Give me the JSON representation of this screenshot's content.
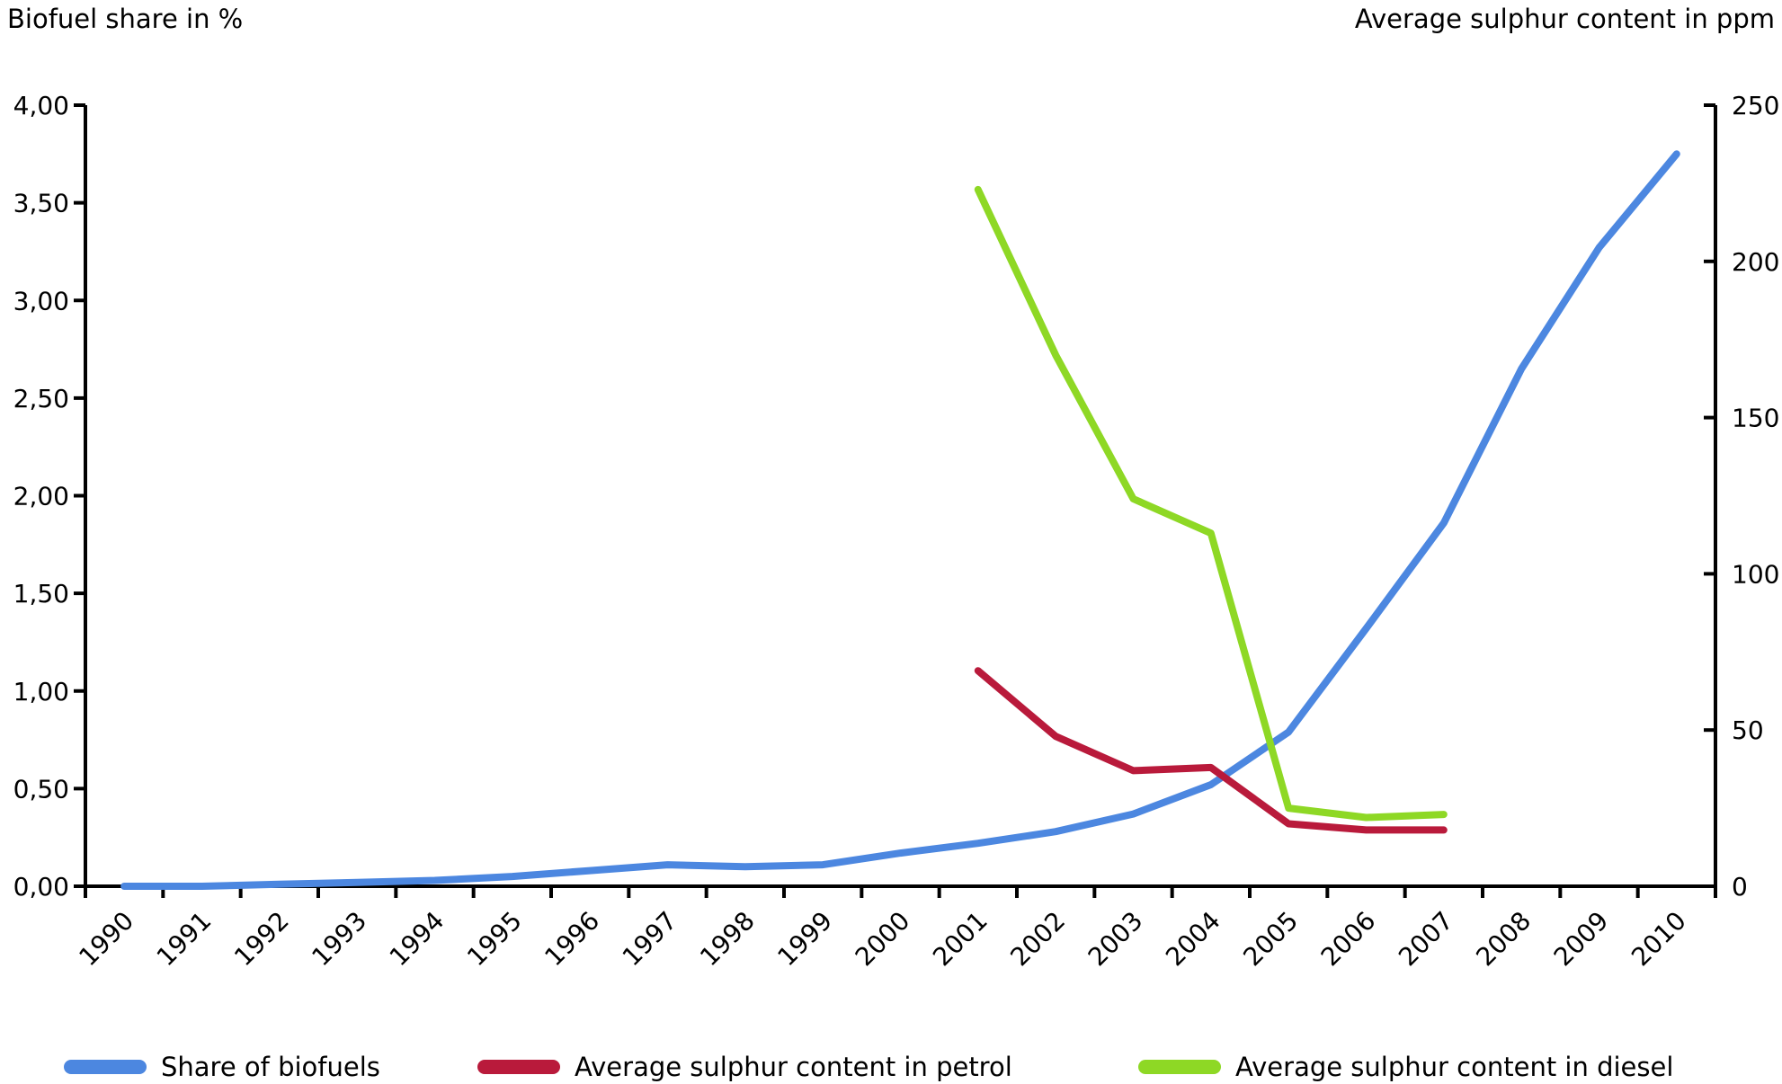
{
  "chart": {
    "left_axis_title": "Biofuel share in %",
    "right_axis_title": "Average sulphur content in ppm"
  },
  "legend": {
    "items": [
      {
        "label": "Share of biofuels",
        "color": "#4c87e0"
      },
      {
        "label": "Average sulphur content in petrol",
        "color": "#b91a3b"
      },
      {
        "label": "Average sulphur content in diesel",
        "color": "#8ed825"
      }
    ]
  },
  "chart_data": {
    "type": "line",
    "title": "",
    "x": [
      "1990",
      "1991",
      "1992",
      "1993",
      "1994",
      "1995",
      "1996",
      "1997",
      "1998",
      "1999",
      "2000",
      "2001",
      "2002",
      "2003",
      "2004",
      "2005",
      "2006",
      "2007",
      "2008",
      "2009",
      "2010"
    ],
    "left_axis": {
      "label": "Biofuel share in %",
      "min": 0,
      "max": 4,
      "tick_values": [
        4.0,
        3.5,
        3.0,
        2.5,
        2.0,
        1.5,
        1.0,
        0.5,
        0.0
      ],
      "tick_labels": [
        "4,00",
        "3,50",
        "3,00",
        "2,50",
        "2,00",
        "1,50",
        "1,00",
        "0,50",
        "0,00"
      ]
    },
    "right_axis": {
      "label": "Average sulphur content in ppm",
      "min": 0,
      "max": 250,
      "tick_values": [
        250,
        200,
        150,
        100,
        50,
        0
      ],
      "tick_labels": [
        "250",
        "200",
        "150",
        "100",
        "50",
        "0"
      ]
    },
    "grid": "off",
    "legend_position": "bottom",
    "series": [
      {
        "name": "Share of biofuels",
        "axis": "left",
        "color": "#4c87e0",
        "year_start": 1990,
        "values": [
          0.0,
          0.0,
          0.01,
          0.02,
          0.03,
          0.05,
          0.08,
          0.11,
          0.1,
          0.11,
          0.17,
          0.22,
          0.28,
          0.37,
          0.52,
          0.79,
          1.32,
          1.86,
          2.65,
          3.27,
          3.75
        ]
      },
      {
        "name": "Average sulphur content in petrol",
        "axis": "right",
        "color": "#b91a3b",
        "year_start": 2001,
        "values": [
          69,
          48,
          37,
          38,
          20,
          18,
          18
        ]
      },
      {
        "name": "Average sulphur content in diesel",
        "axis": "right",
        "color": "#8ed825",
        "year_start": 2001,
        "values": [
          223,
          170,
          124,
          113,
          25,
          22,
          23
        ]
      }
    ]
  }
}
